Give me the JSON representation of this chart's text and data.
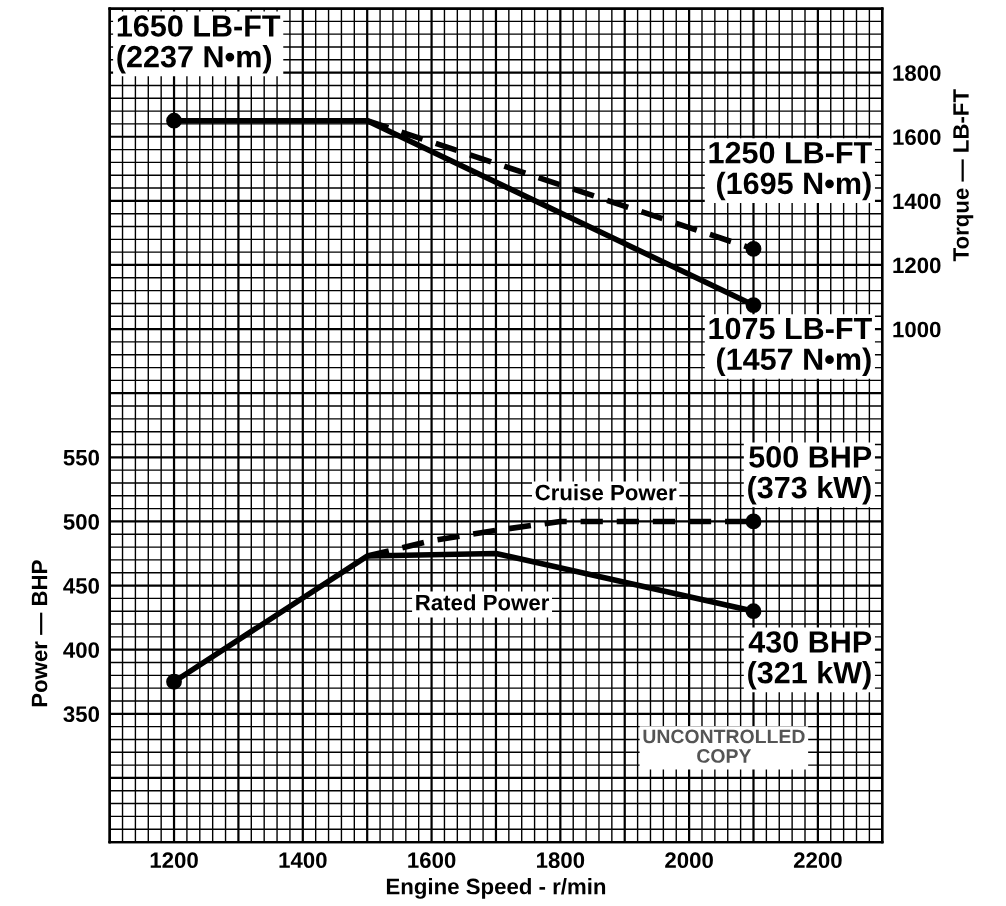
{
  "chart_data": {
    "type": "line",
    "xlabel": "Engine Speed - r/min",
    "ylabel": "Power — BHP",
    "y2label": "Torque — LB-FT",
    "xlim": [
      1100,
      2300
    ],
    "xticks": [
      1200,
      1400,
      1600,
      1800,
      2000,
      2200
    ],
    "ylim": [
      250,
      900
    ],
    "yticks": [
      350,
      400,
      450,
      500,
      550
    ],
    "y2lim": [
      -600,
      2000
    ],
    "y2ticks": [
      1000,
      1200,
      1400,
      1600,
      1800
    ],
    "grid": true,
    "series": [
      {
        "axis": "y2",
        "color": "#000000",
        "line_style": "solid",
        "x": [
          1200,
          1500,
          2100
        ],
        "values": [
          1650,
          1650,
          1075
        ]
      },
      {
        "axis": "y2",
        "color": "#000000",
        "line_style": "dashed",
        "x": [
          1500,
          2100
        ],
        "values": [
          1650,
          1250
        ]
      },
      {
        "axis": "y",
        "color": "#000000",
        "line_style": "solid",
        "x": [
          1200,
          1500,
          1700,
          2100
        ],
        "values": [
          375,
          473,
          475,
          430
        ]
      },
      {
        "axis": "y",
        "color": "#000000",
        "line_style": "dashed",
        "x": [
          1500,
          1600,
          1700,
          1800,
          2100
        ],
        "values": [
          473,
          485,
          493,
          500,
          500
        ]
      },
      {
        "type": "scatter",
        "axis": "y2",
        "color": "#000000",
        "marker": "circle",
        "x": [
          1200,
          2100,
          2100
        ],
        "values": [
          1650,
          1250,
          1075
        ]
      },
      {
        "type": "scatter",
        "axis": "y",
        "color": "#000000",
        "marker": "circle",
        "x": [
          1200,
          2100,
          2100
        ],
        "values": [
          375,
          500,
          430
        ]
      }
    ],
    "annotations": [
      "1650 LB-FT\n(2237 N•m)",
      "1250 LB-FT\n(1695 N•m)",
      "1075 LB-FT\n(1457 N•m)",
      "500 BHP\n(373 kW)",
      "430 BHP\n(321 kW)",
      "Cruise Power",
      "Rated Power",
      "UNCONTROLLED\nCOPY"
    ]
  }
}
